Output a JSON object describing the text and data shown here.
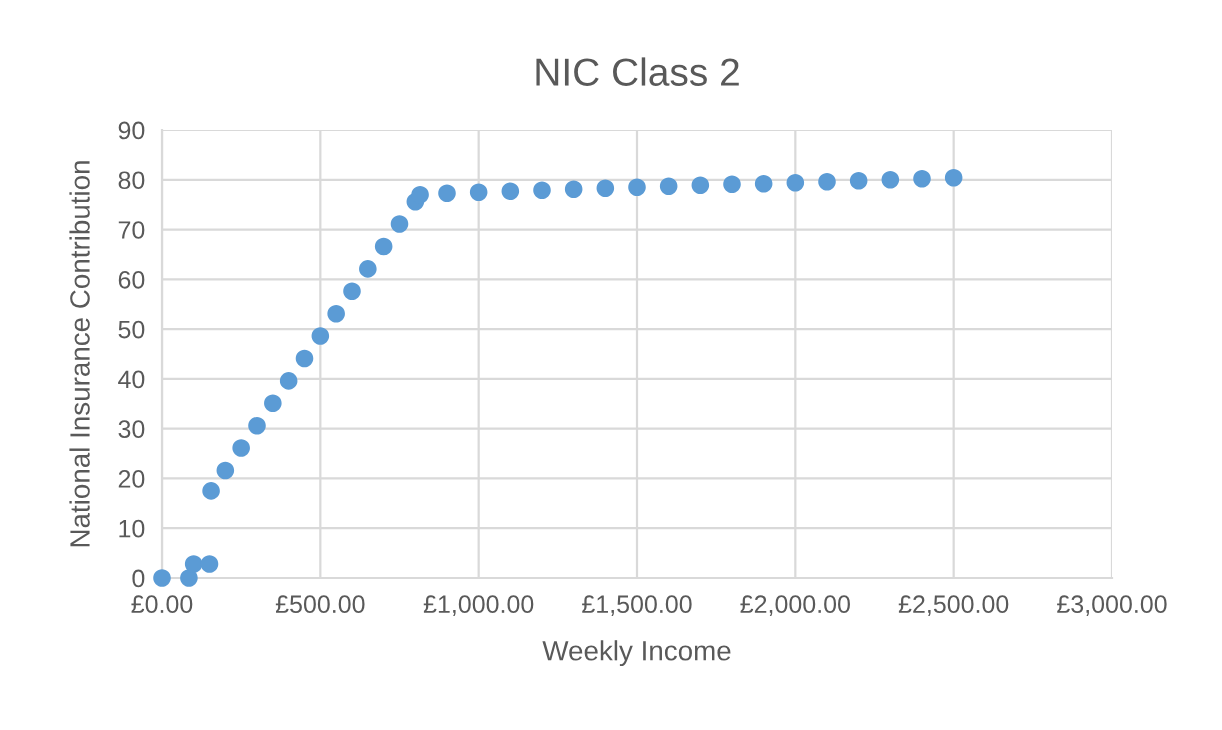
{
  "chart_data": {
    "type": "scatter",
    "title": "NIC Class 2",
    "xlabel": "Weekly Income",
    "ylabel": "National Insurance Contribution",
    "series": [
      {
        "color": "#5b9bd5",
        "x": [
          0,
          85,
          100,
          150,
          155,
          200,
          250,
          300,
          350,
          400,
          450,
          500,
          550,
          600,
          650,
          700,
          750,
          800,
          815,
          900,
          1000,
          1100,
          1200,
          1300,
          1400,
          1500,
          1600,
          1700,
          1800,
          1900,
          2000,
          2100,
          2200,
          2300,
          2400,
          2500
        ],
        "values": [
          0,
          0,
          2.8,
          2.8,
          17.5,
          21.6,
          26.1,
          30.6,
          35.1,
          39.6,
          44.1,
          48.6,
          53.1,
          57.6,
          62.1,
          66.6,
          71.1,
          75.6,
          77,
          77.3,
          77.5,
          77.7,
          77.9,
          78.1,
          78.3,
          78.5,
          78.7,
          78.9,
          79.1,
          79.2,
          79.4,
          79.6,
          79.8,
          80,
          80.2,
          80.4
        ]
      }
    ],
    "xlim": [
      0,
      3000
    ],
    "xticks": [
      {
        "value": 0,
        "label": "£0.00"
      },
      {
        "value": 500,
        "label": "£500.00"
      },
      {
        "value": 1000,
        "label": "£1,000.00"
      },
      {
        "value": 1500,
        "label": "£1,500.00"
      },
      {
        "value": 2000,
        "label": "£2,000.00"
      },
      {
        "value": 2500,
        "label": "£2,500.00"
      },
      {
        "value": 3000,
        "label": "£3,000.00"
      }
    ],
    "ylim": [
      0,
      90
    ],
    "yticks": [
      0,
      10,
      20,
      30,
      40,
      50,
      60,
      70,
      80,
      90
    ],
    "grid": true,
    "marker": "circle"
  }
}
